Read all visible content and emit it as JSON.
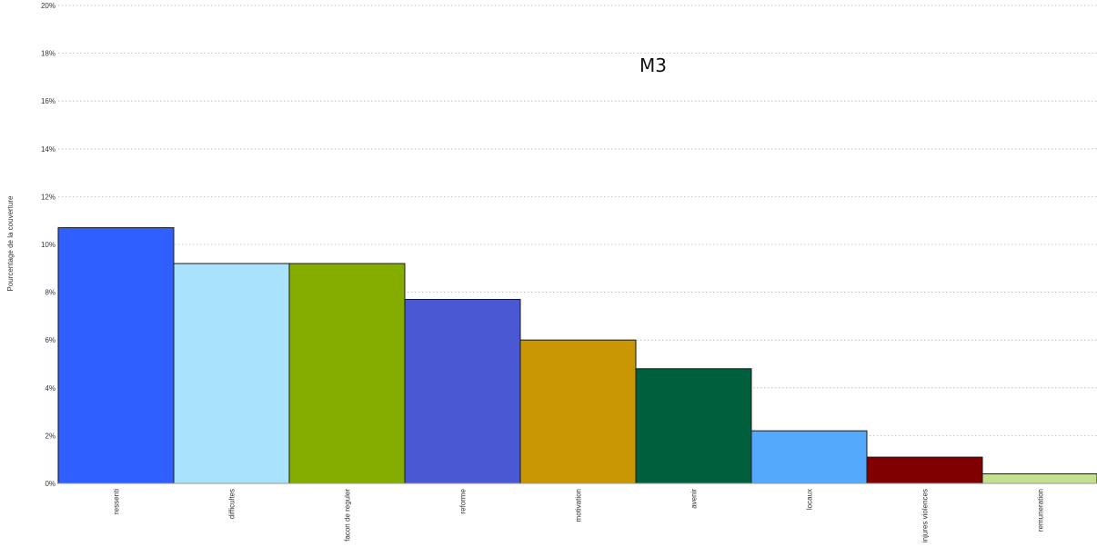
{
  "chart_data": {
    "type": "bar",
    "title": "M3",
    "ylabel": "Pourcentage de la couverture",
    "xlabel": "",
    "ylim": [
      0,
      20
    ],
    "yticks": [
      "0%",
      "2%",
      "4%",
      "6%",
      "8%",
      "10%",
      "12%",
      "14%",
      "16%",
      "18%",
      "20%"
    ],
    "grid": true,
    "categories": [
      "ressenti",
      "difficultes",
      "facon de reguler",
      "reforme",
      "motivation",
      "avenir",
      "locaux",
      "injures violences",
      "remuneration"
    ],
    "values": [
      10.7,
      9.2,
      9.2,
      7.7,
      6.0,
      4.8,
      2.2,
      1.1,
      0.4
    ],
    "colors": [
      "#2f5fff",
      "#a8e2fb",
      "#85ad00",
      "#4a58d4",
      "#c99704",
      "#005f3c",
      "#55a9fd",
      "#800002",
      "#c5e08e"
    ]
  }
}
